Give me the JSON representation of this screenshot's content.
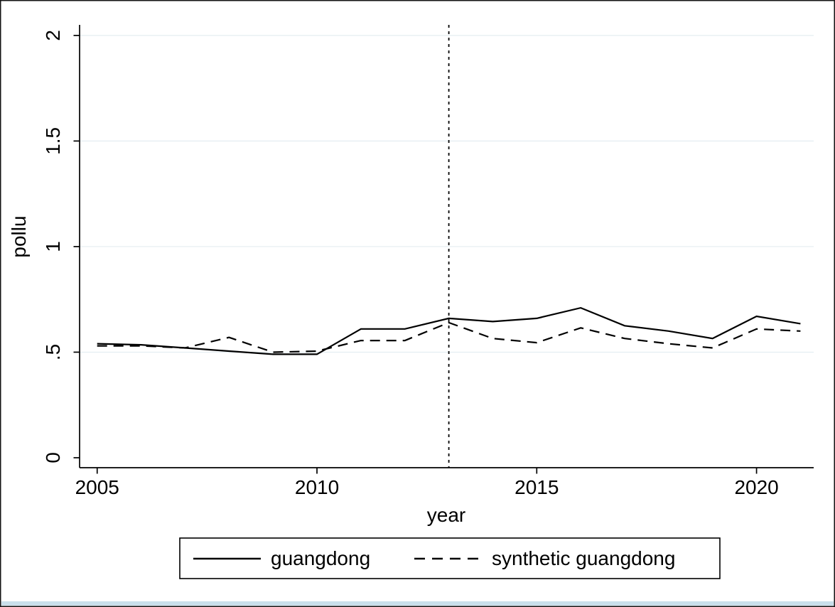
{
  "frame": {
    "background_color": "#ffffff",
    "border_color": "#141414",
    "bottom_edge_color": "#c9dfeb"
  },
  "chart_data": {
    "type": "line",
    "title": "",
    "xlabel": "year",
    "ylabel": "pollu",
    "x": [
      2005,
      2006,
      2007,
      2008,
      2009,
      2010,
      2011,
      2012,
      2013,
      2014,
      2015,
      2016,
      2017,
      2018,
      2019,
      2020,
      2021
    ],
    "series": [
      {
        "name": "guangdong",
        "line_style": "solid",
        "color": "#000000",
        "values": [
          0.54,
          0.535,
          0.52,
          0.505,
          0.49,
          0.49,
          0.61,
          0.61,
          0.66,
          0.645,
          0.66,
          0.71,
          0.625,
          0.6,
          0.565,
          0.67,
          0.635
        ]
      },
      {
        "name": "synthetic guangdong",
        "line_style": "dashed",
        "color": "#000000",
        "values": [
          0.53,
          0.53,
          0.52,
          0.57,
          0.5,
          0.505,
          0.555,
          0.555,
          0.64,
          0.565,
          0.545,
          0.615,
          0.565,
          0.54,
          0.52,
          0.61,
          0.6
        ]
      }
    ],
    "reference_line": {
      "orientation": "vertical",
      "x": 2013,
      "style": "dashed",
      "color": "#000000"
    },
    "axes": {
      "xlim": [
        2004.6,
        2021.3
      ],
      "ylim": [
        0,
        2.05
      ],
      "xticks": [
        {
          "value": 2005,
          "label": "2005"
        },
        {
          "value": 2010,
          "label": "2010"
        },
        {
          "value": 2015,
          "label": "2015"
        },
        {
          "value": 2020,
          "label": "2020"
        }
      ],
      "yticks": [
        {
          "value": 0,
          "label": "0"
        },
        {
          "value": 0.5,
          "label": ".5"
        },
        {
          "value": 1,
          "label": "1"
        },
        {
          "value": 1.5,
          "label": "1.5"
        },
        {
          "value": 2,
          "label": "2"
        }
      ],
      "grid": "horizontal",
      "grid_color": "#e4edf1",
      "axis_color": "#000000"
    },
    "legend": {
      "position": "bottom",
      "entries": [
        {
          "label": "guangdong",
          "style": "solid"
        },
        {
          "label": "synthetic guangdong",
          "style": "dashed"
        }
      ]
    }
  }
}
